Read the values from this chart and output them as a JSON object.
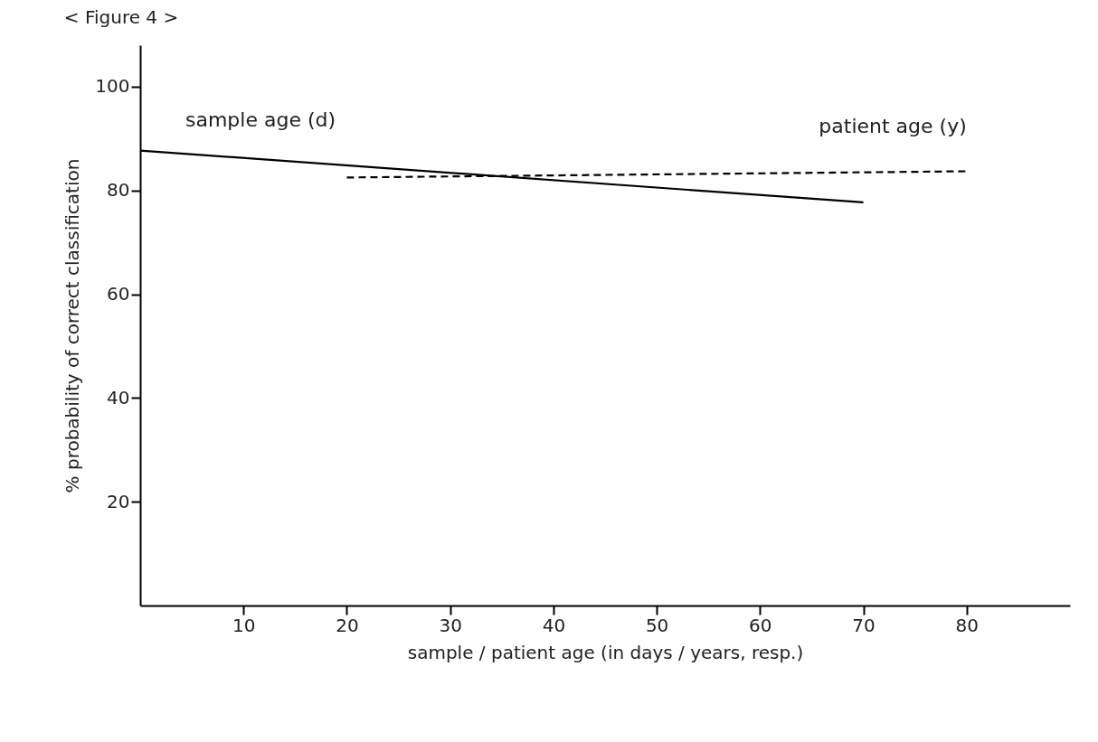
{
  "chart_data": {
    "type": "line",
    "title": "< Figure 4 >",
    "xlabel": "sample / patient age (in days / years, resp.)",
    "ylabel": "% probability of correct classification",
    "series": [
      {
        "name": "sample age (d)",
        "color": "#000000",
        "line_style": "solid",
        "x": [
          0,
          70
        ],
        "values": [
          87.7,
          77.7
        ]
      },
      {
        "name": "patient age (y)",
        "color": "#000000",
        "line_style": "dashed",
        "x": [
          20,
          80
        ],
        "values": [
          82.5,
          83.7
        ]
      }
    ],
    "xlim": [
      0,
      90
    ],
    "xticks": [
      10,
      20,
      30,
      40,
      50,
      60,
      70,
      80
    ],
    "ylim": [
      0,
      108
    ],
    "yticks": [
      20,
      40,
      60,
      80,
      100
    ],
    "grid": false,
    "marker": "none"
  }
}
